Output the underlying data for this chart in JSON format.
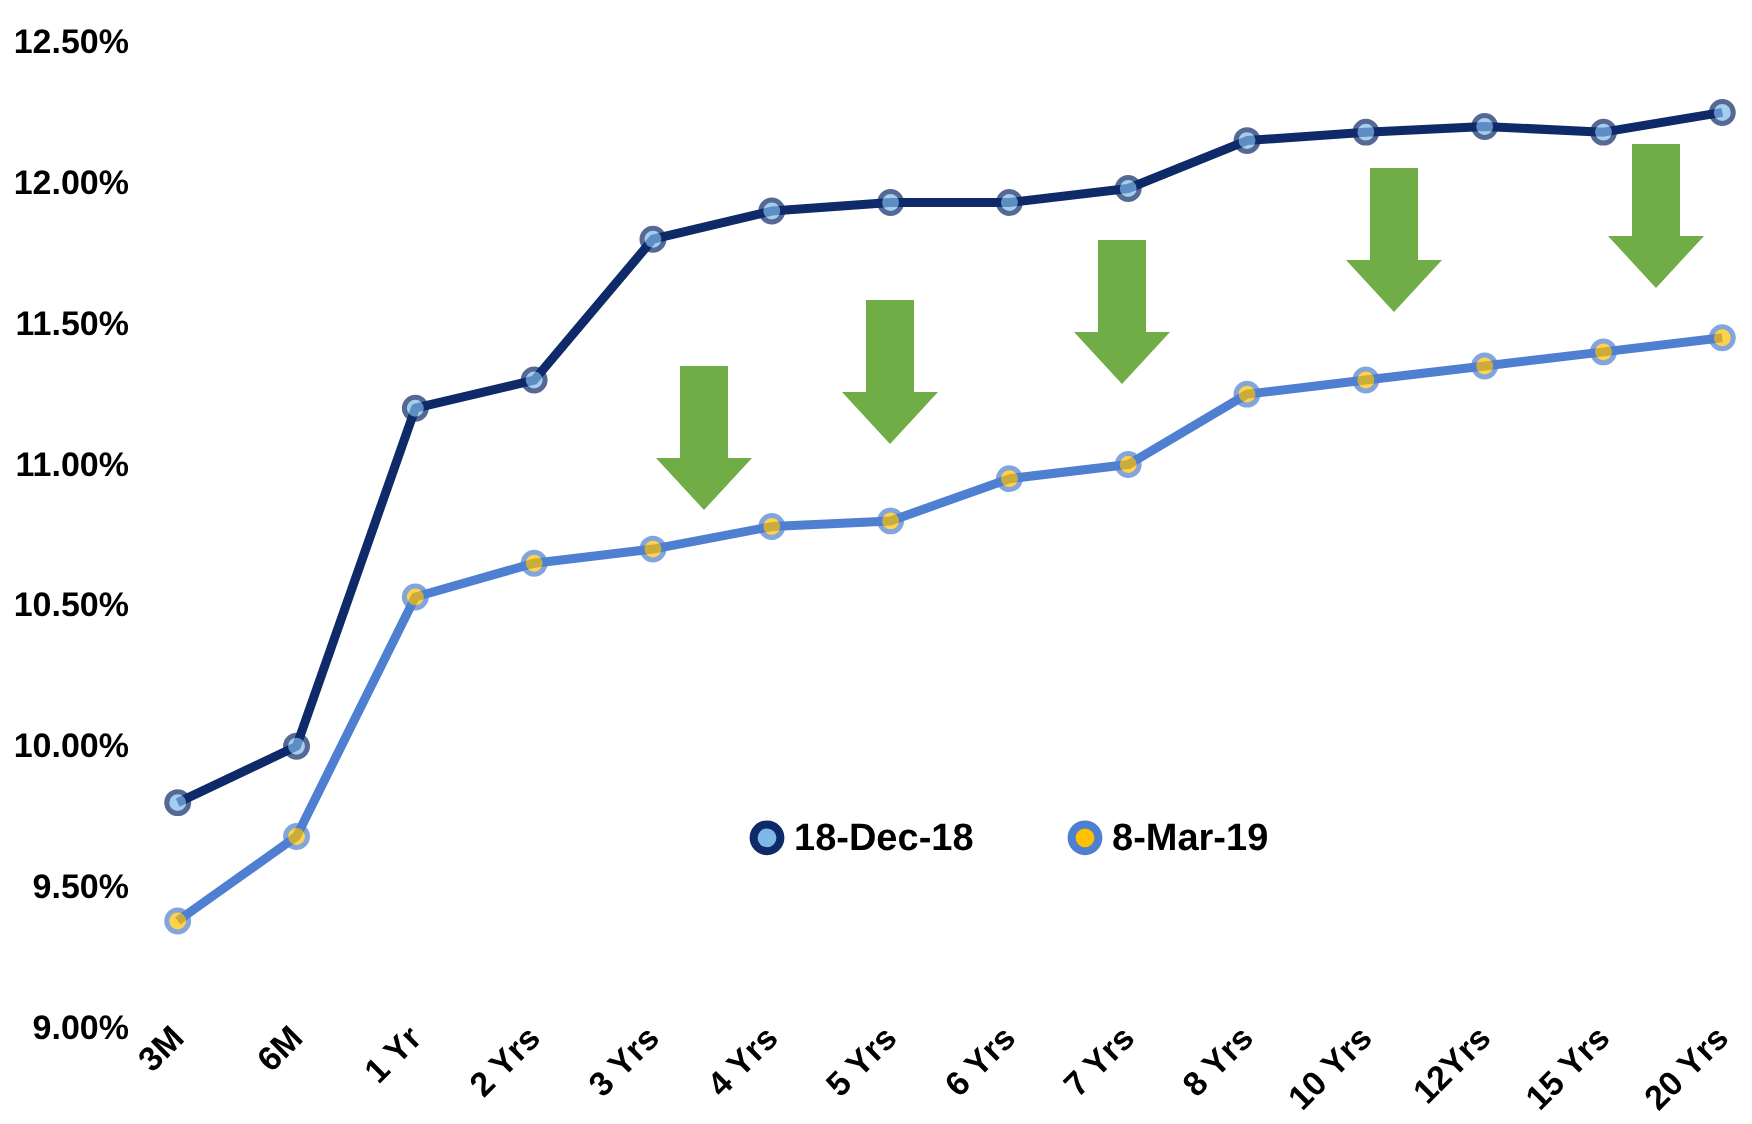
{
  "chart_data": {
    "type": "line",
    "categories": [
      "3M",
      "6M",
      "1 Yr",
      "2 Yrs",
      "3 Yrs",
      "4 Yrs",
      "5 Yrs",
      "6 Yrs",
      "7 Yrs",
      "8 Yrs",
      "10 Yrs",
      "12Yrs",
      "15 Yrs",
      "20 Yrs"
    ],
    "series": [
      {
        "name": "18-Dec-18",
        "color": "#0e2a68",
        "values": [
          9.8,
          10.0,
          11.2,
          11.3,
          11.8,
          11.9,
          11.93,
          11.93,
          11.98,
          12.15,
          12.18,
          12.2,
          12.18,
          12.25
        ]
      },
      {
        "name": "8-Mar-19",
        "color": "#4f7fd0",
        "values": [
          9.38,
          9.68,
          10.53,
          10.65,
          10.7,
          10.78,
          10.8,
          10.95,
          11.0,
          11.25,
          11.3,
          11.35,
          11.4,
          11.45
        ]
      }
    ],
    "ylim": [
      9.0,
      12.5
    ],
    "yticks": [
      {
        "value": 9.0,
        "label": "9.00%"
      },
      {
        "value": 9.5,
        "label": "9.50%"
      },
      {
        "value": 10.0,
        "label": "10.00%"
      },
      {
        "value": 10.5,
        "label": "10.50%"
      },
      {
        "value": 11.0,
        "label": "11.00%"
      },
      {
        "value": 11.5,
        "label": "11.50%"
      },
      {
        "value": 12.0,
        "label": "12.00%"
      },
      {
        "value": 12.5,
        "label": "12.50%"
      }
    ],
    "grid": false,
    "legend": "bottom right",
    "marker": "circle",
    "line_style": "solid"
  }
}
